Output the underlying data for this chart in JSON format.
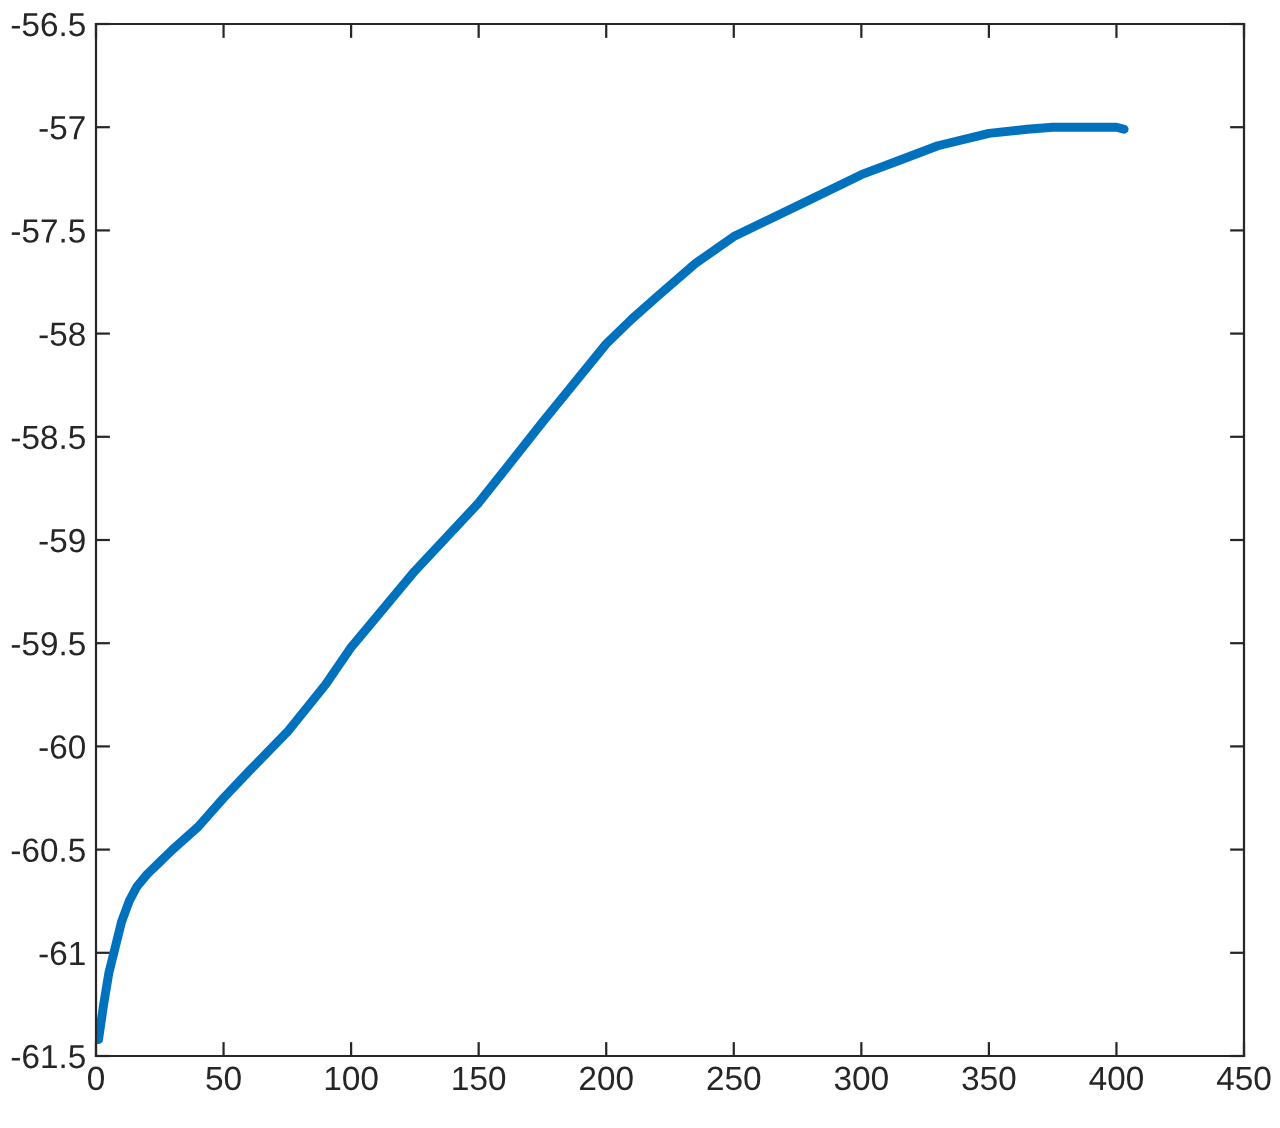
{
  "chart_data": {
    "type": "line",
    "color": "#0072bd",
    "line_style": "solid",
    "grid": false,
    "x": [
      1,
      3,
      5,
      8,
      10,
      13,
      16,
      20,
      25,
      30,
      40,
      50,
      60,
      75,
      90,
      100,
      125,
      150,
      175,
      200,
      210,
      220,
      235,
      250,
      275,
      300,
      315,
      330,
      350,
      365,
      375,
      390,
      400,
      403
    ],
    "values": [
      -61.42,
      -61.25,
      -61.1,
      -60.95,
      -60.85,
      -60.75,
      -60.68,
      -60.62,
      -60.56,
      -60.5,
      -60.39,
      -60.25,
      -60.12,
      -59.93,
      -59.7,
      -59.52,
      -59.15,
      -58.82,
      -58.43,
      -58.05,
      -57.93,
      -57.82,
      -57.66,
      -57.53,
      -57.38,
      -57.23,
      -57.16,
      -57.09,
      -57.03,
      -57.01,
      -57.0,
      -57.0,
      -57.0,
      -57.01
    ],
    "xlim": [
      0,
      450
    ],
    "xticks": [
      0,
      50,
      100,
      150,
      200,
      250,
      300,
      350,
      400,
      450
    ],
    "ylim": [
      -61.5,
      -56.5
    ],
    "yticks": [
      -61.5,
      -61,
      -60.5,
      -60,
      -59.5,
      -59,
      -58.5,
      -58,
      -57.5,
      -57,
      -56.5
    ]
  }
}
